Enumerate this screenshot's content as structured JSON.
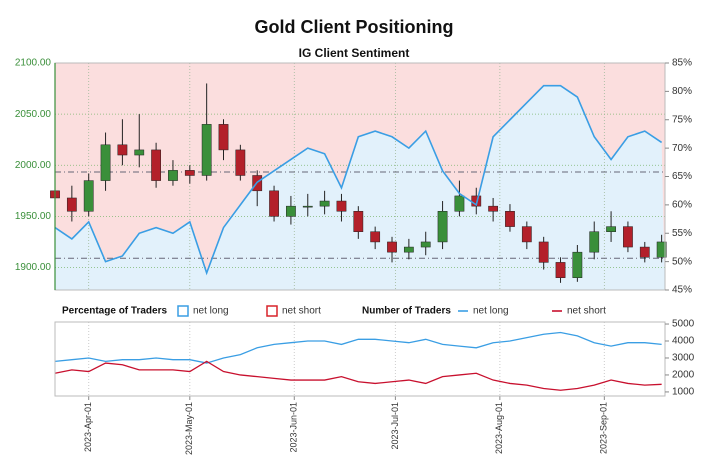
{
  "chart_data": [
    {
      "type": "candlestick",
      "title": "Gold Client Positioning",
      "subtitle": "IG Client Sentiment",
      "x": [
        0,
        5,
        10,
        15,
        20,
        25,
        30,
        35,
        40,
        45,
        50,
        55,
        60,
        65,
        70,
        75,
        80,
        85,
        90,
        95,
        100,
        105,
        110,
        115,
        120,
        125,
        130,
        135,
        140,
        145,
        150,
        155,
        160,
        165,
        170,
        175,
        180
      ],
      "open": [
        1975,
        1968,
        1955,
        1985,
        2020,
        2010,
        2015,
        1985,
        1995,
        1990,
        2040,
        2015,
        1990,
        1975,
        1950,
        1960,
        1960,
        1965,
        1955,
        1935,
        1925,
        1915,
        1920,
        1925,
        1955,
        1970,
        1960,
        1955,
        1940,
        1925,
        1905,
        1890,
        1915,
        1935,
        1940,
        1920,
        1910
      ],
      "high": [
        1990,
        1980,
        1992,
        2032,
        2045,
        2050,
        2022,
        2005,
        2000,
        2080,
        2045,
        2020,
        1995,
        1980,
        1970,
        1972,
        1975,
        1972,
        1960,
        1940,
        1930,
        1928,
        1935,
        1965,
        1985,
        1978,
        1968,
        1962,
        1945,
        1930,
        1910,
        1922,
        1945,
        1955,
        1945,
        1925,
        1932
      ],
      "low": [
        1950,
        1945,
        1950,
        1975,
        2000,
        1998,
        1978,
        1980,
        1982,
        1985,
        2005,
        1985,
        1960,
        1945,
        1942,
        1950,
        1952,
        1945,
        1928,
        1918,
        1905,
        1908,
        1912,
        1918,
        1950,
        1952,
        1945,
        1935,
        1918,
        1898,
        1885,
        1886,
        1908,
        1925,
        1915,
        1905,
        1905
      ],
      "close": [
        1968,
        1955,
        1985,
        2020,
        2010,
        2015,
        1985,
        1995,
        1990,
        2040,
        2015,
        1990,
        1975,
        1950,
        1960,
        1960,
        1965,
        1955,
        1935,
        1925,
        1915,
        1920,
        1925,
        1955,
        1970,
        1960,
        1955,
        1940,
        1925,
        1905,
        1890,
        1915,
        1935,
        1940,
        1920,
        1910,
        1925
      ],
      "up_color": "#3a8f3a",
      "down_color": "#b3202a",
      "xlim": [
        0,
        181
      ],
      "xticks": [
        10,
        40,
        71,
        101,
        132,
        163
      ],
      "ylim": [
        1878,
        2100
      ],
      "yticks": [
        {
          "value": 1900,
          "label": "1900.00"
        },
        {
          "value": 1950,
          "label": "1950.00"
        },
        {
          "value": 2000,
          "label": "2000.00"
        },
        {
          "value": 2050,
          "label": "2050.00"
        },
        {
          "value": 2100,
          "label": "2100.00"
        }
      ],
      "y2lim": [
        45,
        85
      ],
      "y2ticks": [
        {
          "value": 45,
          "label": "45%"
        },
        {
          "value": 50,
          "label": "50%"
        },
        {
          "value": 55,
          "label": "55%"
        },
        {
          "value": 60,
          "label": "60%"
        },
        {
          "value": 65,
          "label": "65%"
        },
        {
          "value": 70,
          "label": "70%"
        },
        {
          "value": 75,
          "label": "75%"
        },
        {
          "value": 80,
          "label": "80%"
        },
        {
          "value": 85,
          "label": "85%"
        }
      ],
      "hlines_y2": [
        65.8,
        50.6
      ],
      "legend_title": "Percentage of Traders",
      "series": [
        {
          "name": "net long",
          "color": "#3a9ee4",
          "fill": "#e2f1fb",
          "axis": "y2",
          "values": [
            56,
            54,
            57,
            50,
            51,
            55,
            56,
            55,
            57,
            48,
            56,
            60,
            64,
            66,
            68,
            70,
            69,
            63,
            72,
            73,
            72,
            70,
            73,
            66,
            62,
            60,
            72,
            75,
            78,
            81,
            81,
            79,
            72,
            68,
            72,
            73,
            71
          ]
        }
      ],
      "above_fill": {
        "name": "net short",
        "color": "#d8232a",
        "fill": "#fbdede"
      },
      "grid": true
    },
    {
      "type": "line",
      "legend_title": "Number of Traders",
      "x": [
        0,
        5,
        10,
        15,
        20,
        25,
        30,
        35,
        40,
        45,
        50,
        55,
        60,
        65,
        70,
        75,
        80,
        85,
        90,
        95,
        100,
        105,
        110,
        115,
        120,
        125,
        130,
        135,
        140,
        145,
        150,
        155,
        160,
        165,
        170,
        175,
        180
      ],
      "xlim": [
        0,
        181
      ],
      "xticks": [
        {
          "value": 10,
          "label": "2023-Apr-01"
        },
        {
          "value": 40,
          "label": "2023-May-01"
        },
        {
          "value": 71,
          "label": "2023-Jun-01"
        },
        {
          "value": 101,
          "label": "2023-Jul-01"
        },
        {
          "value": 132,
          "label": "2023-Aug-01"
        },
        {
          "value": 163,
          "label": "2023-Sep-01"
        }
      ],
      "ylim": [
        760,
        5120
      ],
      "yticks": [
        1000,
        2000,
        3000,
        4000,
        5000
      ],
      "series": [
        {
          "name": "net long",
          "color": "#3a9ee4",
          "values": [
            2800,
            2900,
            3000,
            2800,
            2900,
            2900,
            3000,
            2900,
            2900,
            2700,
            3000,
            3200,
            3600,
            3800,
            3900,
            4000,
            4000,
            3800,
            4100,
            4100,
            4000,
            3900,
            4100,
            3800,
            3700,
            3600,
            3900,
            4000,
            4200,
            4400,
            4500,
            4300,
            3900,
            3700,
            3900,
            3900,
            3800
          ]
        },
        {
          "name": "net short",
          "color": "#c8102e",
          "values": [
            2100,
            2300,
            2200,
            2700,
            2600,
            2300,
            2300,
            2300,
            2200,
            2800,
            2200,
            2000,
            1900,
            1800,
            1700,
            1700,
            1700,
            1900,
            1600,
            1500,
            1600,
            1700,
            1500,
            1900,
            2000,
            2100,
            1700,
            1500,
            1400,
            1200,
            1100,
            1200,
            1400,
            1700,
            1500,
            1400,
            1450
          ]
        }
      ]
    }
  ]
}
